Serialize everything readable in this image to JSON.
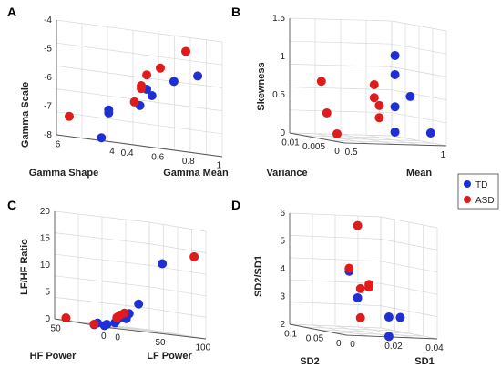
{
  "legend": {
    "items": [
      {
        "label": "TD",
        "color": "#1f2fd6"
      },
      {
        "label": "ASD",
        "color": "#e01b1b"
      }
    ]
  },
  "chart_data": [
    {
      "panel": "A",
      "type": "scatter",
      "x_label": "Gamma Shape",
      "y_label": "Gamma Mean",
      "z_label": "Gamma Scale",
      "x_ticks": [
        "6",
        "4"
      ],
      "y_ticks": [
        "0.4",
        "0.6",
        "0.8",
        "1"
      ],
      "z_ticks": [
        "-4",
        "-5",
        "-6",
        "-7",
        "-8"
      ],
      "xlim": [
        3.5,
        7
      ],
      "ylim": [
        0.4,
        1
      ],
      "zlim": [
        -8,
        -4
      ],
      "series": [
        {
          "name": "TD",
          "points": [
            [
              4.1,
              0.92,
              -5.3
            ],
            [
              4.1,
              0.78,
              -5.6
            ],
            [
              4.0,
              0.64,
              -6.2
            ],
            [
              4.1,
              0.58,
              -6.6
            ],
            [
              4.6,
              0.45,
              -6.9
            ],
            [
              4.6,
              0.45,
              -7.0
            ],
            [
              5.0,
              0.45,
              -7.9
            ],
            [
              4.1,
              0.62,
              -6.0
            ]
          ]
        },
        {
          "name": "ASD",
          "points": [
            [
              4.1,
              0.85,
              -4.5
            ],
            [
              4.1,
              0.7,
              -5.2
            ],
            [
              4.1,
              0.62,
              -5.5
            ],
            [
              4.4,
              0.62,
              -5.9
            ],
            [
              4.4,
              0.62,
              -6.0
            ],
            [
              4.4,
              0.58,
              -6.5
            ],
            [
              6.3,
              0.4,
              -7.3
            ]
          ]
        }
      ]
    },
    {
      "panel": "B",
      "type": "scatter",
      "x_label": "Variance",
      "y_label": "Mean",
      "z_label": "Skewness",
      "x_ticks": [
        "0.01",
        "0.005",
        "0"
      ],
      "y_ticks": [
        "0.5",
        "1"
      ],
      "z_ticks": [
        "0",
        "0.5",
        "1",
        "1.5"
      ],
      "xlim": [
        0,
        0.01
      ],
      "ylim": [
        0,
        1
      ],
      "zlim": [
        0,
        1.5
      ],
      "series": [
        {
          "name": "TD",
          "points": [
            [
              0.001,
              0.55,
              1.15
            ],
            [
              0.001,
              0.55,
              0.9
            ],
            [
              0.001,
              0.7,
              0.62
            ],
            [
              0.001,
              0.55,
              0.48
            ],
            [
              0.001,
              0.55,
              0.15
            ],
            [
              0.001,
              0.9,
              0.15
            ]
          ]
        },
        {
          "name": "ASD",
          "points": [
            [
              0.007,
              0.15,
              0.72
            ],
            [
              0.002,
              0.4,
              0.75
            ],
            [
              0.002,
              0.4,
              0.58
            ],
            [
              0.002,
              0.45,
              0.48
            ],
            [
              0.002,
              0.45,
              0.32
            ],
            [
              0.006,
              0.15,
              0.32
            ],
            [
              0.006,
              0.25,
              0.05
            ]
          ]
        }
      ]
    },
    {
      "panel": "C",
      "type": "scatter",
      "x_label": "HF Power",
      "y_label": "LF Power",
      "z_label": "LF/HF Ratio",
      "x_ticks": [
        "50",
        "0"
      ],
      "y_ticks": [
        "0",
        "50",
        "100"
      ],
      "z_ticks": [
        "0",
        "5",
        "10",
        "15",
        "20"
      ],
      "xlim": [
        0,
        50
      ],
      "ylim": [
        0,
        100
      ],
      "zlim": [
        0,
        20
      ],
      "series": [
        {
          "name": "TD",
          "points": [
            [
              5,
              60,
              13
            ],
            [
              5,
              35,
              5
            ],
            [
              5,
              25,
              3
            ],
            [
              5,
              20,
              2.5
            ],
            [
              5,
              15,
              2
            ],
            [
              5,
              12,
              1.5
            ],
            [
              5,
              10,
              1
            ],
            [
              8,
              5,
              0.5
            ],
            [
              10,
              5,
              0.2
            ],
            [
              12,
              0,
              0.5
            ],
            [
              15,
              0,
              0.1
            ],
            [
              5,
              22,
              2
            ]
          ]
        },
        {
          "name": "ASD",
          "points": [
            [
              2,
              90,
              15
            ],
            [
              5,
              20,
              3
            ],
            [
              5,
              15,
              2.5
            ],
            [
              5,
              12,
              2
            ],
            [
              15,
              0,
              0.2
            ],
            [
              40,
              0,
              0.5
            ]
          ]
        }
      ]
    },
    {
      "panel": "D",
      "type": "scatter",
      "x_label": "SD2",
      "y_label": "SD1",
      "z_label": "SD2/SD1",
      "x_ticks": [
        "0.1",
        "0.05",
        "0"
      ],
      "y_ticks": [
        "0",
        "0.02",
        "0.04"
      ],
      "z_ticks": [
        "2",
        "3",
        "4",
        "5",
        "6"
      ],
      "xlim": [
        0,
        0.1
      ],
      "ylim": [
        0,
        0.04
      ],
      "zlim": [
        2,
        6
      ],
      "series": [
        {
          "name": "TD",
          "points": [
            [
              0.035,
              0.01,
              4.2
            ],
            [
              0.02,
              0.01,
              3.3
            ],
            [
              0.005,
              0.02,
              2.7
            ],
            [
              0.005,
              0.025,
              2.7
            ],
            [
              0.005,
              0.02,
              1.9
            ]
          ]
        },
        {
          "name": "ASD",
          "points": [
            [
              0.02,
              0.01,
              5.9
            ],
            [
              0.035,
              0.01,
              4.3
            ],
            [
              0.02,
              0.015,
              3.8
            ],
            [
              0.02,
              0.015,
              3.7
            ],
            [
              0.015,
              0.01,
              3.65
            ],
            [
              0.015,
              0.01,
              2.6
            ]
          ]
        }
      ]
    }
  ]
}
